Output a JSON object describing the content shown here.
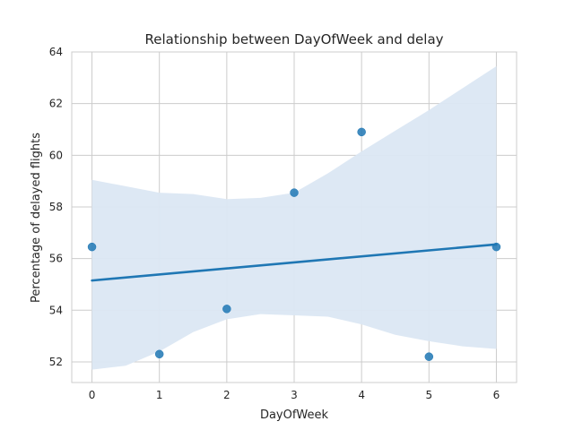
{
  "chart_data": {
    "type": "scatter",
    "title": "Relationship between DayOfWeek and delay",
    "xlabel": "DayOfWeek",
    "ylabel": "Percentage of delayed flights",
    "xlim": [
      -0.3,
      6.3
    ],
    "ylim": [
      51.2,
      64
    ],
    "x_ticks": [
      0,
      1,
      2,
      3,
      4,
      5,
      6
    ],
    "y_ticks": [
      52,
      54,
      56,
      58,
      60,
      62,
      64
    ],
    "grid": true,
    "points": [
      {
        "x": 0,
        "y": 56.45
      },
      {
        "x": 1,
        "y": 52.3
      },
      {
        "x": 2,
        "y": 54.05
      },
      {
        "x": 3,
        "y": 58.55
      },
      {
        "x": 4,
        "y": 60.9
      },
      {
        "x": 5,
        "y": 52.2
      },
      {
        "x": 6,
        "y": 56.45
      }
    ],
    "regression_line": {
      "x": [
        0,
        6
      ],
      "y": [
        55.15,
        56.55
      ]
    },
    "confidence_band": {
      "x": [
        0,
        0.5,
        1,
        1.5,
        2,
        2.5,
        3,
        3.5,
        4,
        4.5,
        5,
        5.5,
        6
      ],
      "upper": [
        59.05,
        58.8,
        58.55,
        58.5,
        58.3,
        58.35,
        58.55,
        59.3,
        60.15,
        60.95,
        61.75,
        62.6,
        63.45
      ],
      "lower": [
        51.7,
        51.85,
        52.4,
        53.15,
        53.65,
        53.85,
        53.8,
        53.75,
        53.45,
        53.05,
        52.8,
        52.6,
        52.5
      ]
    },
    "colors": {
      "points": "#1f77b4",
      "line": "#1f77b4",
      "band": "#dbe7f3",
      "grid": "#cccccc",
      "spine": "#cccccc",
      "text": "#262626"
    }
  }
}
